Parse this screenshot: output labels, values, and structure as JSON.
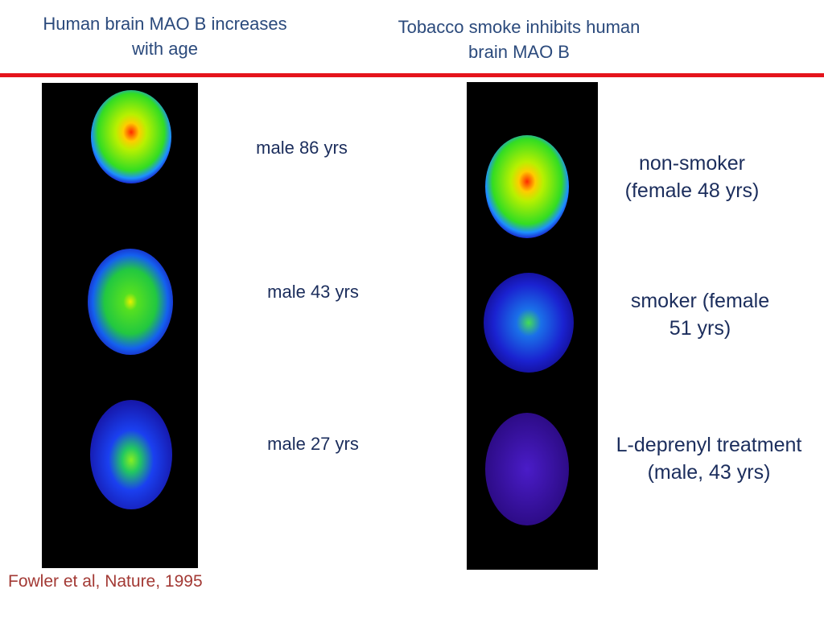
{
  "left": {
    "title": [
      "Human brain MAO B increases",
      "with age"
    ],
    "labels": [
      "male 86 yrs",
      "male 43 yrs",
      "male 27 yrs"
    ]
  },
  "right": {
    "title": [
      "Tobacco smoke inhibits human",
      "brain MAO B"
    ],
    "labels": [
      [
        "non-smoker",
        "(female 48 yrs)"
      ],
      [
        "smoker (female",
        "51 yrs)"
      ],
      [
        "L-deprenyl treatment",
        "(male, 43 yrs)"
      ]
    ]
  },
  "citation": "Fowler et al, Nature, 1995"
}
